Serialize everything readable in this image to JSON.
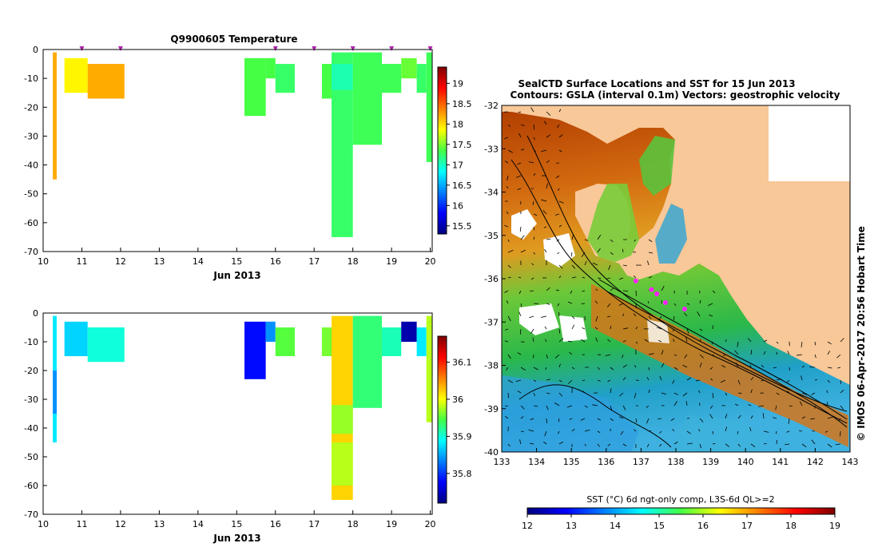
{
  "chart_data": [
    {
      "type": "heatmap",
      "title": "Q9900605  Temperature",
      "xlabel": "Jun 2013",
      "x_ticks": [
        "10",
        "11",
        "12",
        "13",
        "14",
        "15",
        "16",
        "17",
        "18",
        "19",
        "20"
      ],
      "xlim": [
        10,
        20.05
      ],
      "y_ticks": [
        "0",
        "-10",
        "-20",
        "-30",
        "-40",
        "-50",
        "-60",
        "-70"
      ],
      "ylim": [
        -70,
        0
      ],
      "colorbar_ticks": [
        "19",
        "18.5",
        "18",
        "17.5",
        "17",
        "16.5",
        "16",
        "15.5"
      ],
      "colorbar_range": [
        15.3,
        19.4
      ],
      "profile_markers_day": [
        11,
        12,
        16,
        17,
        18,
        19,
        20
      ],
      "profile_marker_color": "#aa22aa",
      "cells": [
        [
          10.25,
          10.35,
          -45,
          -1,
          18.2
        ],
        [
          10.55,
          11.15,
          -15,
          -3,
          17.9
        ],
        [
          11.15,
          12.1,
          -17,
          -5,
          18.2
        ],
        [
          15.2,
          15.75,
          -23,
          -3,
          17.35
        ],
        [
          15.75,
          16.0,
          -10,
          -3,
          17.35
        ],
        [
          16.0,
          16.5,
          -15,
          -5,
          17.25
        ],
        [
          17.2,
          17.45,
          -17,
          -5,
          17.35
        ],
        [
          17.45,
          18.0,
          -65,
          -1,
          17.25
        ],
        [
          17.45,
          18.0,
          -14,
          -5,
          17.05
        ],
        [
          18.0,
          18.75,
          -33,
          -1,
          17.3
        ],
        [
          18.75,
          19.25,
          -15,
          -5,
          17.3
        ],
        [
          19.25,
          19.65,
          -10,
          -3,
          17.45
        ],
        [
          19.65,
          19.9,
          -15,
          -5,
          17.25
        ],
        [
          19.9,
          20.05,
          -39,
          -1,
          17.3
        ]
      ]
    },
    {
      "type": "heatmap",
      "title": "",
      "xlabel": "Jun 2013",
      "x_ticks": [
        "10",
        "11",
        "12",
        "13",
        "14",
        "15",
        "16",
        "17",
        "18",
        "19",
        "20"
      ],
      "xlim": [
        10,
        20.05
      ],
      "y_ticks": [
        "0",
        "-10",
        "-20",
        "-30",
        "-40",
        "-50",
        "-60",
        "-70"
      ],
      "ylim": [
        -70,
        0
      ],
      "colorbar_ticks": [
        "36.1",
        "36",
        "35.9",
        "35.8"
      ],
      "colorbar_range": [
        35.72,
        36.17
      ],
      "cells": [
        [
          10.25,
          10.35,
          -45,
          -1,
          35.88
        ],
        [
          10.25,
          10.35,
          -35,
          -20,
          35.84
        ],
        [
          10.55,
          11.15,
          -15,
          -3,
          35.87
        ],
        [
          11.15,
          12.1,
          -17,
          -5,
          35.9
        ],
        [
          15.2,
          15.75,
          -23,
          -3,
          35.78
        ],
        [
          15.75,
          16.0,
          -10,
          -3,
          35.84
        ],
        [
          16.0,
          16.5,
          -15,
          -5,
          35.95
        ],
        [
          17.2,
          17.45,
          -15,
          -5,
          35.96
        ],
        [
          17.45,
          18.0,
          -65,
          -1,
          36.02
        ],
        [
          17.45,
          18.0,
          -60,
          -45,
          35.98
        ],
        [
          17.45,
          18.0,
          -42,
          -32,
          35.97
        ],
        [
          18.0,
          18.75,
          -33,
          -1,
          35.93
        ],
        [
          18.75,
          19.25,
          -15,
          -5,
          35.91
        ],
        [
          19.25,
          19.65,
          -10,
          -3,
          35.74
        ],
        [
          19.65,
          19.9,
          -15,
          -5,
          35.88
        ],
        [
          19.9,
          20.05,
          -38,
          -1,
          35.98
        ]
      ]
    },
    {
      "type": "heatmap",
      "title": "SealCTD Surface Locations and SST for 15 Jun 2013",
      "subtitle": "Contours: GSLA (interval 0.1m) Vectors: geostrophic velocity",
      "x_ticks": [
        "133",
        "134",
        "135",
        "136",
        "137",
        "138",
        "139",
        "140",
        "141",
        "142",
        "143"
      ],
      "xlim": [
        133,
        143
      ],
      "y_ticks": [
        "-32",
        "-33",
        "-34",
        "-35",
        "-36",
        "-37",
        "-38",
        "-39",
        "-40"
      ],
      "ylim": [
        -40,
        -32
      ],
      "colorbar_label": "SST (°C) 6d ngt-only comp, L3S-6d QL>=2",
      "colorbar_ticks": [
        "12",
        "13",
        "14",
        "15",
        "16",
        "17",
        "18",
        "19"
      ],
      "colorbar_range": [
        12,
        19
      ],
      "land_color": "#f8c898",
      "seal_locations": [
        [
          136.85,
          -36.05
        ],
        [
          137.3,
          -36.25
        ],
        [
          137.45,
          -36.35
        ],
        [
          137.7,
          -36.55
        ],
        [
          138.25,
          -36.7
        ]
      ],
      "credit": "© IMOS 06-Apr-2017 20:56 Hobart Time"
    }
  ]
}
